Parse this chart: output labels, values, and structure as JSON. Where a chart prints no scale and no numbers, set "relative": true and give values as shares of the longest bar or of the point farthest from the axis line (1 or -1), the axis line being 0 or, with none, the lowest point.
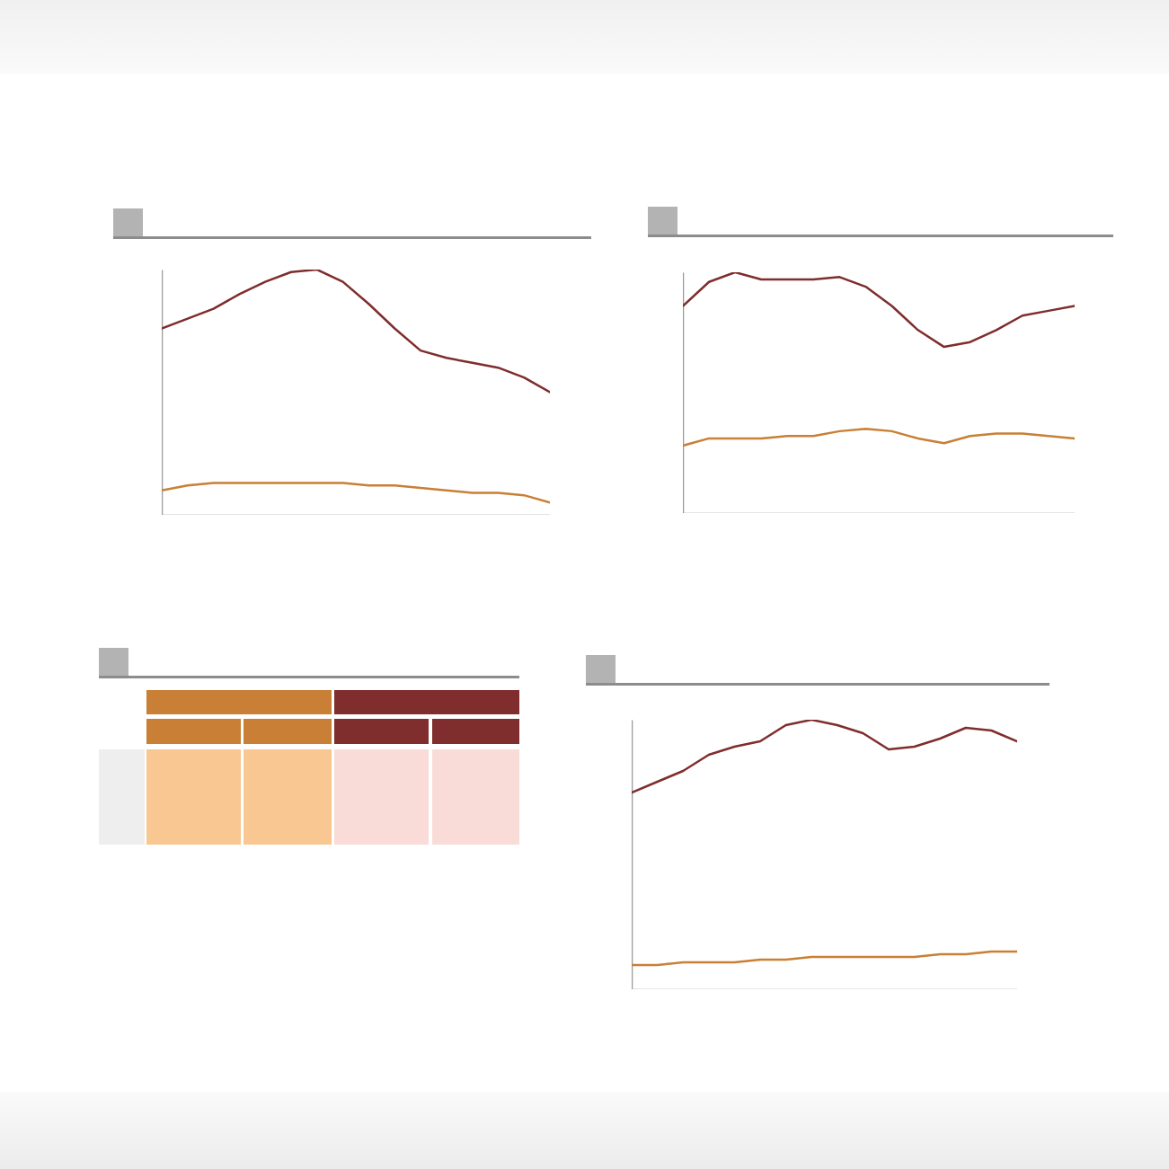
{
  "chart_data": [
    {
      "type": "line",
      "relative": true,
      "categories": [
        null,
        null,
        null,
        null,
        null,
        null,
        null,
        null,
        null,
        null,
        null,
        null,
        null,
        null,
        null,
        null
      ],
      "series": [
        {
          "color": "#c97f35",
          "values": [
            0.1,
            0.12,
            0.13,
            0.13,
            0.13,
            0.13,
            0.13,
            0.13,
            0.12,
            0.12,
            0.11,
            0.1,
            0.09,
            0.09,
            0.08,
            0.05
          ]
        },
        {
          "color": "#7f2d2d",
          "values": [
            0.76,
            0.8,
            0.84,
            0.9,
            0.95,
            0.99,
            1,
            0.95,
            0.86,
            0.76,
            0.67,
            0.64,
            0.62,
            0.6,
            0.56,
            0.5
          ]
        }
      ]
    },
    {
      "type": "line",
      "relative": true,
      "categories": [
        null,
        null,
        null,
        null,
        null,
        null,
        null,
        null,
        null,
        null,
        null,
        null,
        null,
        null,
        null,
        null
      ],
      "series": [
        {
          "color": "#c97f35",
          "values": [
            0.28,
            0.31,
            0.31,
            0.31,
            0.32,
            0.32,
            0.34,
            0.35,
            0.34,
            0.31,
            0.29,
            0.32,
            0.33,
            0.33,
            0.32,
            0.31
          ]
        },
        {
          "color": "#7f2d2d",
          "values": [
            0.86,
            0.96,
            1,
            0.97,
            0.97,
            0.97,
            0.98,
            0.94,
            0.86,
            0.76,
            0.69,
            0.71,
            0.76,
            0.82,
            0.84,
            0.86
          ]
        }
      ]
    },
    {
      "type": "line",
      "relative": true,
      "categories": [
        null,
        null,
        null,
        null,
        null,
        null,
        null,
        null,
        null,
        null,
        null,
        null,
        null,
        null,
        null,
        null
      ],
      "series": [
        {
          "color": "#c97f35",
          "values": [
            0.09,
            0.09,
            0.1,
            0.1,
            0.1,
            0.11,
            0.11,
            0.12,
            0.12,
            0.12,
            0.12,
            0.12,
            0.13,
            0.13,
            0.14,
            0.14
          ]
        },
        {
          "color": "#7f2d2d",
          "values": [
            0.73,
            0.77,
            0.81,
            0.87,
            0.9,
            0.92,
            0.98,
            1,
            0.98,
            0.95,
            0.89,
            0.9,
            0.93,
            0.97,
            0.96,
            0.92
          ]
        }
      ]
    }
  ]
}
